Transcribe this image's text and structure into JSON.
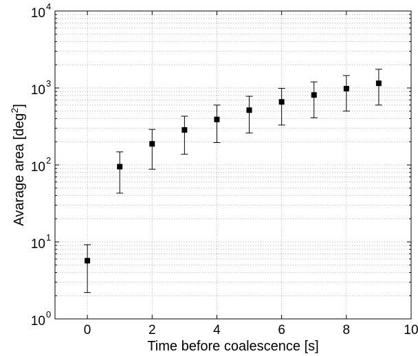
{
  "chart_data": {
    "type": "scatter",
    "title": "",
    "xlabel": "Time before coalescence [s]",
    "ylabel": "Avarage area [deg",
    "ylabel_sup": "2",
    "ylabel_end": "]",
    "xlim": [
      -1,
      10
    ],
    "ylim": [
      1,
      10000
    ],
    "yscale": "log",
    "grid": true,
    "legend": "none",
    "x_ticks": [
      "0",
      "2",
      "4",
      "6",
      "8",
      "10"
    ],
    "y_ticks": [
      {
        "base": "10",
        "exp": "0"
      },
      {
        "base": "10",
        "exp": "1"
      },
      {
        "base": "10",
        "exp": "2"
      },
      {
        "base": "10",
        "exp": "3"
      },
      {
        "base": "10",
        "exp": "4"
      }
    ],
    "marker_color": "#000000",
    "series": [
      {
        "x": [
          0,
          1,
          2,
          3,
          4,
          5,
          6,
          7,
          8,
          9
        ],
        "y": [
          5.7,
          95,
          188,
          285,
          390,
          515,
          660,
          810,
          980,
          1150
        ],
        "y_low": [
          2.2,
          43,
          88,
          138,
          195,
          260,
          330,
          410,
          500,
          600
        ],
        "y_high": [
          9.2,
          148,
          290,
          430,
          600,
          780,
          990,
          1200,
          1450,
          1750
        ]
      }
    ]
  }
}
